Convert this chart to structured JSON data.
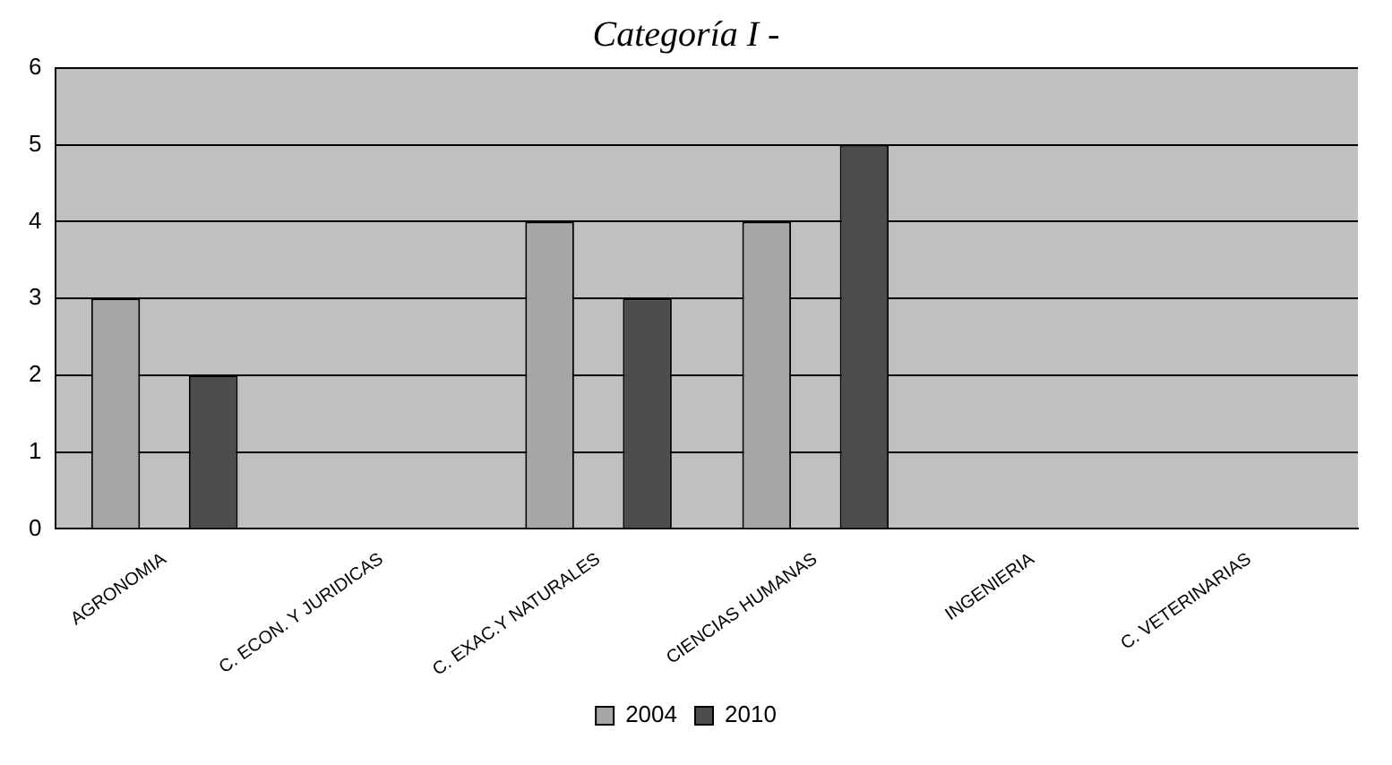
{
  "chart_data": {
    "type": "bar",
    "title": "Categoría I -",
    "categories": [
      "AGRONOMIA",
      "C. ECON. Y JURIDICAS",
      "C. EXAC.Y NATURALES",
      "CIENCIAS HUMANAS",
      "INGENIERIA",
      "C. VETERINARIAS"
    ],
    "series": [
      {
        "name": "2004",
        "color": "#a6a6a6",
        "values": [
          3,
          0,
          4,
          4,
          0,
          0
        ]
      },
      {
        "name": "2010",
        "color": "#4d4d4d",
        "values": [
          2,
          0,
          3,
          5,
          0,
          0
        ]
      }
    ],
    "ylim": [
      0,
      6
    ],
    "yticks": [
      0,
      1,
      2,
      3,
      4,
      5,
      6
    ],
    "grid": "y",
    "legend": "bottom"
  }
}
